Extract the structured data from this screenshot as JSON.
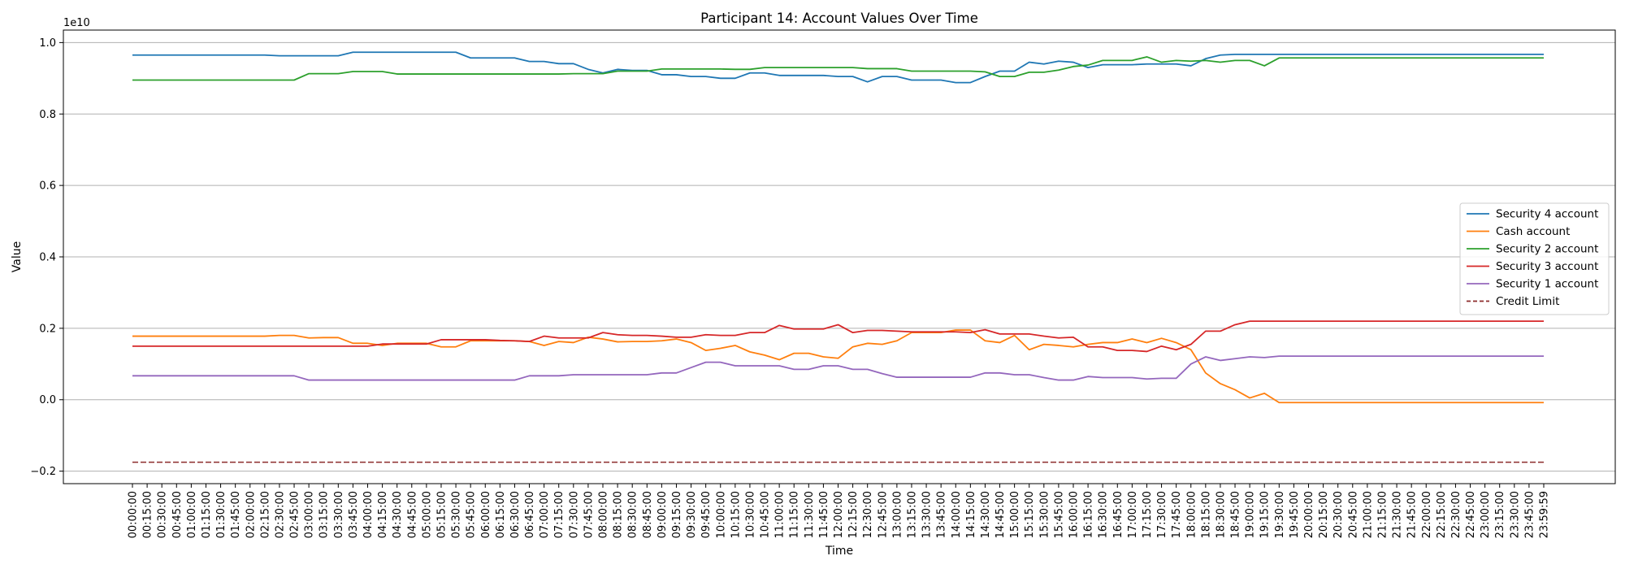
{
  "chart_data": {
    "type": "line",
    "title": "Participant 14: Account Values Over Time",
    "xlabel": "Time",
    "ylabel": "Value",
    "y_scale_label": "1e10",
    "ylim": [
      -2.35,
      10.35
    ],
    "yticks": [
      -0.2,
      0.0,
      0.2,
      0.4,
      0.6,
      0.8,
      1.0
    ],
    "ytick_labels": [
      "−0.2",
      "0.0",
      "0.2",
      "0.4",
      "0.6",
      "0.8",
      "1.0"
    ],
    "grid": "y-axis",
    "legend_position": "center right",
    "categories": [
      "00:00:00",
      "00:15:00",
      "00:30:00",
      "00:45:00",
      "01:00:00",
      "01:15:00",
      "01:30:00",
      "01:45:00",
      "02:00:00",
      "02:15:00",
      "02:30:00",
      "02:45:00",
      "03:00:00",
      "03:15:00",
      "03:30:00",
      "03:45:00",
      "04:00:00",
      "04:15:00",
      "04:30:00",
      "04:45:00",
      "05:00:00",
      "05:15:00",
      "05:30:00",
      "05:45:00",
      "06:00:00",
      "06:15:00",
      "06:30:00",
      "06:45:00",
      "07:00:00",
      "07:15:00",
      "07:30:00",
      "07:45:00",
      "08:00:00",
      "08:15:00",
      "08:30:00",
      "08:45:00",
      "09:00:00",
      "09:15:00",
      "09:30:00",
      "09:45:00",
      "10:00:00",
      "10:15:00",
      "10:30:00",
      "10:45:00",
      "11:00:00",
      "11:15:00",
      "11:30:00",
      "11:45:00",
      "12:00:00",
      "12:15:00",
      "12:30:00",
      "12:45:00",
      "13:00:00",
      "13:15:00",
      "13:30:00",
      "13:45:00",
      "14:00:00",
      "14:15:00",
      "14:30:00",
      "14:45:00",
      "15:00:00",
      "15:15:00",
      "15:30:00",
      "15:45:00",
      "16:00:00",
      "16:15:00",
      "16:30:00",
      "16:45:00",
      "17:00:00",
      "17:15:00",
      "17:30:00",
      "17:45:00",
      "18:00:00",
      "18:15:00",
      "18:30:00",
      "18:45:00",
      "19:00:00",
      "19:15:00",
      "19:30:00",
      "19:45:00",
      "20:00:00",
      "20:15:00",
      "20:30:00",
      "20:45:00",
      "21:00:00",
      "21:15:00",
      "21:30:00",
      "21:45:00",
      "22:00:00",
      "22:15:00",
      "22:30:00",
      "22:45:00",
      "23:00:00",
      "23:15:00",
      "23:30:00",
      "23:45:00",
      "23:59:59"
    ],
    "series": [
      {
        "name": "Security 4 account",
        "color": "#1f77b4",
        "style": "solid",
        "values": [
          9.65,
          9.65,
          9.65,
          9.65,
          9.65,
          9.65,
          9.65,
          9.65,
          9.65,
          9.65,
          9.63,
          9.63,
          9.63,
          9.63,
          9.63,
          9.73,
          9.73,
          9.73,
          9.73,
          9.73,
          9.73,
          9.73,
          9.73,
          9.57,
          9.57,
          9.57,
          9.57,
          9.47,
          9.47,
          9.41,
          9.41,
          9.25,
          9.15,
          9.25,
          9.22,
          9.22,
          9.1,
          9.1,
          9.05,
          9.05,
          9.0,
          9.0,
          9.15,
          9.15,
          9.08,
          9.08,
          9.08,
          9.08,
          9.05,
          9.05,
          8.9,
          9.05,
          9.05,
          8.95,
          8.95,
          8.95,
          8.88,
          8.88,
          9.05,
          9.2,
          9.2,
          9.45,
          9.4,
          9.48,
          9.45,
          9.3,
          9.38,
          9.38,
          9.38,
          9.4,
          9.4,
          9.4,
          9.35,
          9.55,
          9.65,
          9.67,
          9.67,
          9.67,
          9.67,
          9.67,
          9.67,
          9.67,
          9.67,
          9.67,
          9.67,
          9.67,
          9.67,
          9.67,
          9.67,
          9.67,
          9.67,
          9.67,
          9.67,
          9.67,
          9.67,
          9.67,
          9.67
        ]
      },
      {
        "name": "Cash account",
        "color": "#ff7f0e",
        "style": "solid",
        "values": [
          1.78,
          1.78,
          1.78,
          1.78,
          1.78,
          1.78,
          1.78,
          1.78,
          1.78,
          1.78,
          1.8,
          1.8,
          1.73,
          1.74,
          1.74,
          1.58,
          1.58,
          1.52,
          1.58,
          1.58,
          1.58,
          1.48,
          1.48,
          1.65,
          1.65,
          1.65,
          1.65,
          1.63,
          1.52,
          1.63,
          1.6,
          1.75,
          1.7,
          1.62,
          1.63,
          1.63,
          1.65,
          1.7,
          1.6,
          1.38,
          1.44,
          1.52,
          1.34,
          1.25,
          1.12,
          1.3,
          1.3,
          1.2,
          1.16,
          1.48,
          1.58,
          1.55,
          1.65,
          1.88,
          1.88,
          1.88,
          1.95,
          1.95,
          1.65,
          1.6,
          1.8,
          1.4,
          1.55,
          1.52,
          1.48,
          1.55,
          1.6,
          1.6,
          1.7,
          1.6,
          1.72,
          1.6,
          1.4,
          0.75,
          0.45,
          0.28,
          0.05,
          0.18,
          -0.08,
          -0.08,
          -0.08,
          -0.08,
          -0.08,
          -0.08,
          -0.08,
          -0.08,
          -0.08,
          -0.08,
          -0.08,
          -0.08,
          -0.08,
          -0.08,
          -0.08,
          -0.08,
          -0.08,
          -0.08,
          -0.08
        ]
      },
      {
        "name": "Security 2 account",
        "color": "#2ca02c",
        "style": "solid",
        "values": [
          8.95,
          8.95,
          8.95,
          8.95,
          8.95,
          8.95,
          8.95,
          8.95,
          8.95,
          8.95,
          8.95,
          8.95,
          9.13,
          9.13,
          9.13,
          9.19,
          9.19,
          9.19,
          9.12,
          9.12,
          9.12,
          9.12,
          9.12,
          9.12,
          9.12,
          9.12,
          9.12,
          9.12,
          9.12,
          9.12,
          9.13,
          9.13,
          9.13,
          9.2,
          9.2,
          9.2,
          9.26,
          9.26,
          9.26,
          9.26,
          9.26,
          9.25,
          9.25,
          9.3,
          9.3,
          9.3,
          9.3,
          9.3,
          9.3,
          9.3,
          9.27,
          9.27,
          9.27,
          9.2,
          9.2,
          9.2,
          9.2,
          9.2,
          9.18,
          9.05,
          9.05,
          9.17,
          9.17,
          9.23,
          9.33,
          9.37,
          9.5,
          9.5,
          9.5,
          9.6,
          9.45,
          9.5,
          9.48,
          9.5,
          9.45,
          9.5,
          9.5,
          9.35,
          9.57,
          9.57,
          9.57,
          9.57,
          9.57,
          9.57,
          9.57,
          9.57,
          9.57,
          9.57,
          9.57,
          9.57,
          9.57,
          9.57,
          9.57,
          9.57,
          9.57,
          9.57,
          9.57
        ]
      },
      {
        "name": "Security 3 account",
        "color": "#d62728",
        "style": "solid",
        "values": [
          1.5,
          1.5,
          1.5,
          1.5,
          1.5,
          1.5,
          1.5,
          1.5,
          1.5,
          1.5,
          1.5,
          1.5,
          1.5,
          1.5,
          1.5,
          1.5,
          1.5,
          1.56,
          1.56,
          1.56,
          1.56,
          1.68,
          1.68,
          1.68,
          1.68,
          1.66,
          1.65,
          1.63,
          1.78,
          1.73,
          1.73,
          1.73,
          1.88,
          1.82,
          1.8,
          1.8,
          1.78,
          1.75,
          1.75,
          1.82,
          1.8,
          1.8,
          1.88,
          1.88,
          2.08,
          1.98,
          1.98,
          1.98,
          2.1,
          1.88,
          1.94,
          1.94,
          1.92,
          1.9,
          1.9,
          1.9,
          1.9,
          1.88,
          1.96,
          1.84,
          1.84,
          1.84,
          1.78,
          1.73,
          1.75,
          1.48,
          1.48,
          1.38,
          1.38,
          1.35,
          1.5,
          1.4,
          1.55,
          1.92,
          1.92,
          2.1,
          2.2,
          2.2,
          2.2,
          2.2,
          2.2,
          2.2,
          2.2,
          2.2,
          2.2,
          2.2,
          2.2,
          2.2,
          2.2,
          2.2,
          2.2,
          2.2,
          2.2,
          2.2,
          2.2,
          2.2,
          2.2
        ]
      },
      {
        "name": "Security 1 account",
        "color": "#9467bd",
        "style": "solid",
        "values": [
          0.67,
          0.67,
          0.67,
          0.67,
          0.67,
          0.67,
          0.67,
          0.67,
          0.67,
          0.67,
          0.67,
          0.67,
          0.55,
          0.55,
          0.55,
          0.55,
          0.55,
          0.55,
          0.55,
          0.55,
          0.55,
          0.55,
          0.55,
          0.55,
          0.55,
          0.55,
          0.55,
          0.67,
          0.67,
          0.67,
          0.7,
          0.7,
          0.7,
          0.7,
          0.7,
          0.7,
          0.75,
          0.75,
          0.9,
          1.05,
          1.05,
          0.95,
          0.95,
          0.95,
          0.95,
          0.85,
          0.85,
          0.95,
          0.95,
          0.85,
          0.85,
          0.73,
          0.63,
          0.63,
          0.63,
          0.63,
          0.63,
          0.63,
          0.75,
          0.75,
          0.7,
          0.7,
          0.62,
          0.55,
          0.55,
          0.65,
          0.62,
          0.62,
          0.62,
          0.58,
          0.6,
          0.6,
          1.0,
          1.2,
          1.1,
          1.15,
          1.2,
          1.18,
          1.22,
          1.22,
          1.22,
          1.22,
          1.22,
          1.22,
          1.22,
          1.22,
          1.22,
          1.22,
          1.22,
          1.22,
          1.22,
          1.22,
          1.22,
          1.22,
          1.22,
          1.22,
          1.22
        ]
      },
      {
        "name": "Credit Limit",
        "color": "#8c2b2b",
        "style": "dashed",
        "constant": -1.75
      }
    ]
  }
}
